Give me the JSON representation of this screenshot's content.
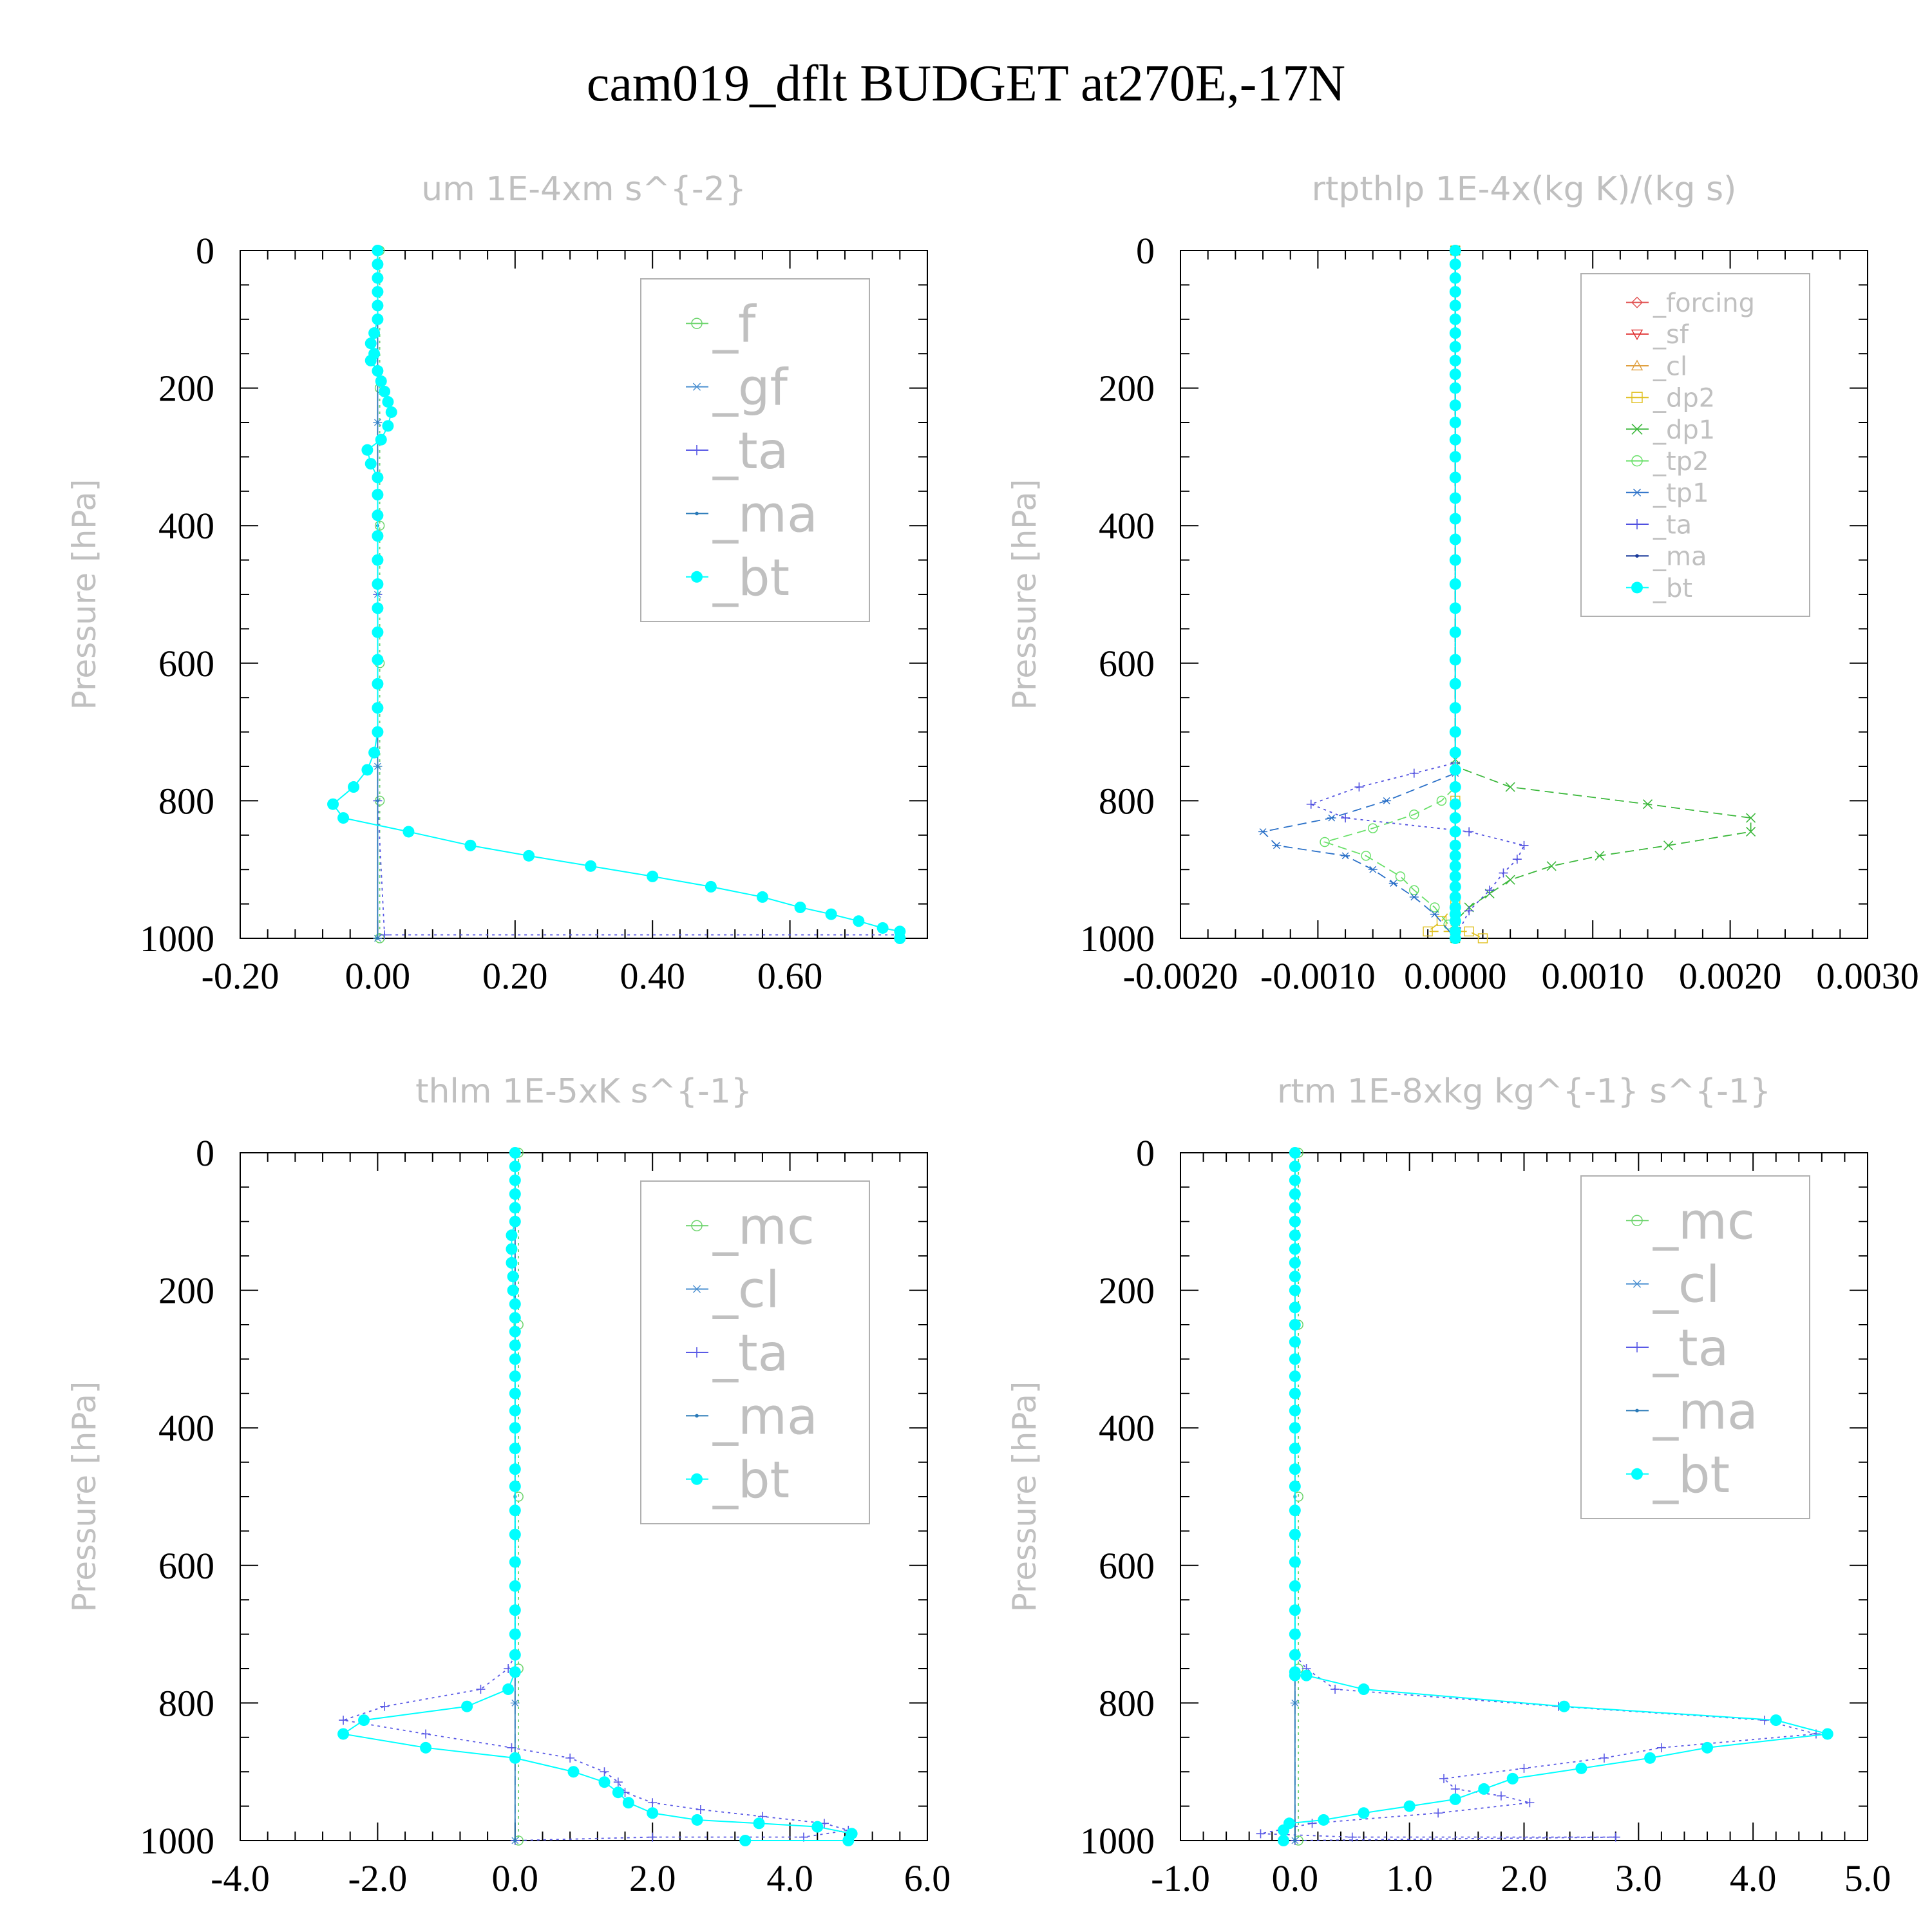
{
  "page_title": "cam019_dflt  BUDGET at270E,-17N",
  "chart_data": [
    {
      "type": "line",
      "title": "um  1E-4xm s^{-2}",
      "ylabel": "Pressure [hPa]",
      "xlim": [
        -0.2,
        0.8
      ],
      "xticks": [
        "-0.20",
        "0.00",
        "0.20",
        "0.40",
        "0.60"
      ],
      "xtick_values": [
        -0.2,
        0.0,
        0.2,
        0.4,
        0.6
      ],
      "ylim": [
        0,
        1000
      ],
      "yticks": [
        "0",
        "200",
        "400",
        "600",
        "800",
        "1000"
      ],
      "legend_font": 78,
      "series": [
        {
          "name": "_f",
          "color": "#6cd46c",
          "marker": "circle",
          "dash": "dot",
          "x": [
            0.003,
            0.003,
            0.003,
            0.003,
            0.003,
            0.003
          ],
          "y": [
            0,
            200,
            400,
            600,
            800,
            1000
          ]
        },
        {
          "name": "_gf",
          "color": "#4a8fd0",
          "marker": "star",
          "dash": "dash",
          "x": [
            0.0,
            0.0,
            0.0,
            0.0,
            0.0
          ],
          "y": [
            0,
            250,
            500,
            750,
            1000
          ]
        },
        {
          "name": "_ta",
          "color": "#5a5ae6",
          "marker": "plus",
          "dash": "dot",
          "x": [
            0.0,
            0.0,
            0.0,
            0.01,
            0.76,
            0.76
          ],
          "y": [
            0,
            500,
            800,
            995,
            995,
            1000
          ]
        },
        {
          "name": "_ma",
          "color": "#2a7ab8",
          "marker": "dot",
          "dash": "solid",
          "x": [
            0.0,
            0.0,
            0.0,
            0.0
          ],
          "y": [
            0,
            400,
            800,
            1000
          ]
        },
        {
          "name": "_bt",
          "color": "#00ffff",
          "marker": "bigdot",
          "dash": "solid",
          "x": [
            0.0,
            0.0,
            0.0,
            0.0,
            0.0,
            0.0,
            -0.005,
            -0.01,
            -0.005,
            -0.01,
            0.0,
            0.005,
            0.01,
            0.015,
            0.02,
            0.015,
            0.005,
            -0.015,
            -0.01,
            0.0,
            0.0,
            0.0,
            0.0,
            0.0,
            0.0,
            0.0,
            0.0,
            0.0,
            0.0,
            0.0,
            0.0,
            -0.005,
            -0.015,
            -0.035,
            -0.065,
            -0.05,
            0.045,
            0.135,
            0.22,
            0.31,
            0.4,
            0.485,
            0.56,
            0.615,
            0.66,
            0.7,
            0.735,
            0.76,
            0.76
          ],
          "y": [
            0,
            20,
            40,
            60,
            80,
            100,
            120,
            135,
            150,
            160,
            175,
            190,
            205,
            220,
            235,
            255,
            275,
            290,
            310,
            330,
            355,
            385,
            415,
            450,
            485,
            520,
            555,
            595,
            630,
            665,
            700,
            730,
            755,
            780,
            805,
            825,
            845,
            865,
            880,
            895,
            910,
            925,
            940,
            955,
            965,
            975,
            985,
            990,
            1000
          ]
        }
      ]
    },
    {
      "type": "line",
      "title": "rtpthlp  1E-4x(kg K)/(kg s)",
      "ylabel": "Pressure [hPa]",
      "xlim": [
        -0.002,
        0.003
      ],
      "xticks": [
        "-0.0020",
        "-0.0010",
        "0.0000",
        "0.0010",
        "0.0020",
        "0.0030"
      ],
      "xtick_values": [
        -0.002,
        -0.001,
        0.0,
        0.001,
        0.002,
        0.003
      ],
      "ylim": [
        0,
        1000
      ],
      "yticks": [
        "0",
        "200",
        "400",
        "600",
        "800",
        "1000"
      ],
      "legend_font": 40,
      "series": [
        {
          "name": "_forcing",
          "color": "#e05050",
          "marker": "diamond",
          "dash": "solid",
          "x": [
            0.0,
            0.0
          ],
          "y": [
            0,
            1000
          ]
        },
        {
          "name": "_sf",
          "color": "#e03030",
          "marker": "tridown",
          "dash": "dash",
          "x": [
            0.0,
            0.0
          ],
          "y": [
            0,
            1000
          ]
        },
        {
          "name": "_cl",
          "color": "#e0a040",
          "marker": "triup",
          "dash": "dot",
          "x": [
            0.0,
            0.0
          ],
          "y": [
            0,
            1000
          ]
        },
        {
          "name": "_dp2",
          "color": "#e0c020",
          "marker": "square",
          "dash": "dash",
          "x": [
            0.0,
            0.0,
            0.0,
            -0.0001,
            -0.0002,
            0.0001,
            0.0002
          ],
          "y": [
            0,
            800,
            950,
            975,
            990,
            990,
            1000
          ]
        },
        {
          "name": "_dp1",
          "color": "#3cb83c",
          "marker": "cross",
          "dash": "dash",
          "x": [
            0.0,
            0.0,
            0.0,
            0.0004,
            0.0014,
            0.00215,
            0.00215,
            0.00155,
            0.00105,
            0.0007,
            0.0004,
            0.00025,
            0.0001,
            0.0,
            0.0,
            0.0
          ],
          "y": [
            0,
            740,
            750,
            780,
            805,
            825,
            845,
            865,
            880,
            895,
            915,
            935,
            955,
            975,
            990,
            1000
          ]
        },
        {
          "name": "_tp2",
          "color": "#6ae06a",
          "marker": "circle",
          "dash": "dash",
          "x": [
            0.0,
            0.0,
            -0.0001,
            -0.0003,
            -0.0006,
            -0.00095,
            -0.00065,
            -0.0004,
            -0.0003,
            -0.00015,
            -5e-05,
            0.0
          ],
          "y": [
            0,
            780,
            800,
            820,
            840,
            860,
            880,
            910,
            930,
            955,
            980,
            1000
          ]
        },
        {
          "name": "_tp1",
          "color": "#2a70c8",
          "marker": "star",
          "dash": "dash",
          "x": [
            0.0,
            0.0,
            -0.0005,
            -0.0009,
            -0.0014,
            -0.0013,
            -0.0008,
            -0.0006,
            -0.00045,
            -0.0003,
            -0.00015,
            0.0
          ],
          "y": [
            0,
            760,
            800,
            825,
            845,
            865,
            880,
            900,
            920,
            940,
            965,
            1000
          ]
        },
        {
          "name": "_ta",
          "color": "#5050e0",
          "marker": "plus",
          "dash": "dot",
          "x": [
            0.0,
            0.0,
            -0.0003,
            -0.0007,
            -0.00105,
            -0.0008,
            0.0001,
            0.0005,
            0.00045,
            0.00035,
            0.00025,
            0.0001,
            0.0
          ],
          "y": [
            0,
            745,
            760,
            780,
            805,
            825,
            845,
            865,
            885,
            905,
            930,
            960,
            1000
          ]
        },
        {
          "name": "_ma",
          "color": "#1a3a9a",
          "marker": "dot",
          "dash": "solid",
          "x": [
            0.0,
            0.0
          ],
          "y": [
            0,
            1000
          ]
        },
        {
          "name": "_bt",
          "color": "#00ffff",
          "marker": "bigdot",
          "dash": "solid",
          "x": [
            0.0,
            0.0,
            0.0,
            0.0,
            0.0,
            0.0,
            0.0,
            0.0,
            0.0,
            0.0,
            0.0,
            0.0,
            0.0,
            0.0,
            0.0,
            0.0,
            0.0,
            0.0,
            0.0,
            0.0,
            0.0,
            0.0,
            0.0,
            0.0,
            0.0,
            0.0,
            0.0,
            0.0,
            0.0,
            0.0,
            0.0,
            0.0,
            0.0,
            0.0,
            0.0,
            0.0,
            0.0,
            0.0,
            0.0,
            0.0,
            0.0,
            0.0,
            0.0,
            0.0
          ],
          "y": [
            0,
            20,
            40,
            60,
            80,
            100,
            120,
            140,
            160,
            180,
            200,
            225,
            250,
            275,
            300,
            330,
            360,
            390,
            420,
            450,
            485,
            520,
            555,
            595,
            630,
            665,
            700,
            730,
            755,
            780,
            805,
            825,
            845,
            865,
            880,
            895,
            910,
            925,
            940,
            955,
            965,
            975,
            990,
            1000
          ]
        }
      ]
    },
    {
      "type": "line",
      "title": "thlm  1E-5xK s^{-1}",
      "ylabel": "Pressure [hPa]",
      "xlim": [
        -4.0,
        6.0
      ],
      "xticks": [
        "-4.0",
        "-2.0",
        "0.0",
        "2.0",
        "4.0",
        "6.0"
      ],
      "xtick_values": [
        -4.0,
        -2.0,
        0.0,
        2.0,
        4.0,
        6.0
      ],
      "ylim": [
        0,
        1000
      ],
      "yticks": [
        "0",
        "200",
        "400",
        "600",
        "800",
        "1000"
      ],
      "legend_font": 78,
      "series": [
        {
          "name": "_mc",
          "color": "#6cd46c",
          "marker": "circle",
          "dash": "dot",
          "x": [
            0.05,
            0.05,
            0.05,
            0.05,
            0.05
          ],
          "y": [
            0,
            250,
            500,
            750,
            1000
          ]
        },
        {
          "name": "_cl",
          "color": "#4a8fd0",
          "marker": "star",
          "dash": "dash",
          "x": [
            0.0,
            0.0,
            0.0,
            0.0
          ],
          "y": [
            0,
            400,
            800,
            1000
          ]
        },
        {
          "name": "_ta",
          "color": "#5a5ae6",
          "marker": "plus",
          "dash": "dot",
          "x": [
            0.0,
            0.0,
            -0.1,
            -0.5,
            -1.9,
            -2.5,
            -1.3,
            -0.05,
            0.8,
            1.3,
            1.5,
            1.6,
            2.0,
            2.7,
            3.6,
            4.5,
            4.85,
            4.2,
            2.0,
            0.0
          ],
          "y": [
            0,
            730,
            750,
            780,
            805,
            825,
            845,
            865,
            880,
            900,
            915,
            930,
            945,
            955,
            965,
            975,
            985,
            995,
            995,
            1000
          ]
        },
        {
          "name": "_ma",
          "color": "#2a7ab8",
          "marker": "dot",
          "dash": "solid",
          "x": [
            0.0,
            0.0,
            0.0
          ],
          "y": [
            0,
            500,
            1000
          ]
        },
        {
          "name": "_bt",
          "color": "#00ffff",
          "marker": "bigdot",
          "dash": "solid",
          "x": [
            0.0,
            0.0,
            0.0,
            0.0,
            0.0,
            0.0,
            -0.05,
            -0.05,
            -0.05,
            -0.03,
            -0.03,
            0.0,
            0.0,
            0.0,
            0.0,
            0.0,
            0.0,
            0.0,
            0.0,
            0.0,
            0.0,
            0.0,
            0.0,
            0.0,
            0.0,
            0.0,
            0.0,
            0.0,
            0.0,
            0.0,
            0.0,
            -0.1,
            -0.7,
            -2.2,
            -2.5,
            -1.3,
            0.0,
            0.85,
            1.3,
            1.5,
            1.65,
            2.0,
            2.65,
            3.55,
            4.4,
            4.9,
            4.85,
            3.35
          ],
          "y": [
            0,
            20,
            40,
            60,
            80,
            100,
            120,
            140,
            160,
            180,
            200,
            220,
            240,
            260,
            280,
            300,
            325,
            350,
            375,
            400,
            430,
            460,
            485,
            520,
            555,
            595,
            630,
            665,
            700,
            730,
            755,
            780,
            805,
            825,
            845,
            865,
            880,
            900,
            915,
            930,
            945,
            960,
            970,
            975,
            980,
            990,
            1000,
            1000
          ]
        }
      ]
    },
    {
      "type": "line",
      "title": "rtm  1E-8xkg kg^{-1} s^{-1}",
      "ylabel": "Pressure [hPa]",
      "xlim": [
        -1.0,
        5.0
      ],
      "xticks": [
        "-1.0",
        "0.0",
        "1.0",
        "2.0",
        "3.0",
        "4.0",
        "5.0"
      ],
      "xtick_values": [
        -1.0,
        0.0,
        1.0,
        2.0,
        3.0,
        4.0,
        5.0
      ],
      "ylim": [
        0,
        1000
      ],
      "yticks": [
        "0",
        "200",
        "400",
        "600",
        "800",
        "1000"
      ],
      "legend_font": 78,
      "series": [
        {
          "name": "_mc",
          "color": "#6cd46c",
          "marker": "circle",
          "dash": "dot",
          "x": [
            0.03,
            0.03,
            0.03,
            0.03,
            0.03
          ],
          "y": [
            0,
            250,
            500,
            750,
            1000
          ]
        },
        {
          "name": "_cl",
          "color": "#4a8fd0",
          "marker": "star",
          "dash": "dash",
          "x": [
            0.0,
            0.0,
            0.0,
            0.0
          ],
          "y": [
            0,
            400,
            800,
            1000
          ]
        },
        {
          "name": "_ta",
          "color": "#5a5ae6",
          "marker": "plus",
          "dash": "dot",
          "x": [
            0.0,
            0.0,
            0.1,
            0.35,
            2.3,
            4.1,
            4.55,
            3.2,
            2.7,
            2.0,
            1.3,
            1.4,
            1.8,
            2.05,
            1.25,
            0.15,
            -0.3,
            0.5,
            2.8,
            0.0
          ],
          "y": [
            0,
            730,
            750,
            780,
            805,
            825,
            845,
            865,
            880,
            895,
            910,
            925,
            935,
            945,
            960,
            975,
            990,
            995,
            995,
            1000
          ]
        },
        {
          "name": "_ma",
          "color": "#2a7ab8",
          "marker": "dot",
          "dash": "solid",
          "x": [
            0.0,
            0.0,
            0.0
          ],
          "y": [
            0,
            500,
            1000
          ]
        },
        {
          "name": "_bt",
          "color": "#00ffff",
          "marker": "bigdot",
          "dash": "solid",
          "x": [
            0.0,
            0.0,
            0.0,
            0.0,
            0.0,
            0.0,
            0.0,
            0.0,
            0.0,
            0.0,
            0.0,
            0.0,
            0.0,
            0.0,
            0.0,
            0.0,
            0.0,
            0.0,
            0.0,
            0.0,
            0.0,
            0.0,
            0.0,
            0.0,
            0.0,
            0.0,
            0.0,
            0.0,
            0.0,
            0.0,
            0.0,
            0.1,
            0.6,
            2.35,
            4.2,
            4.65,
            3.6,
            3.1,
            2.5,
            1.9,
            1.65,
            1.4,
            1.0,
            0.6,
            0.25,
            -0.05,
            -0.1,
            -0.1
          ],
          "y": [
            0,
            20,
            40,
            60,
            80,
            100,
            120,
            140,
            160,
            180,
            200,
            225,
            250,
            275,
            300,
            325,
            350,
            375,
            400,
            430,
            460,
            485,
            520,
            555,
            595,
            630,
            665,
            700,
            730,
            755,
            760,
            760,
            780,
            805,
            825,
            845,
            865,
            880,
            895,
            910,
            925,
            940,
            950,
            960,
            970,
            975,
            985,
            1000
          ]
        }
      ]
    }
  ]
}
